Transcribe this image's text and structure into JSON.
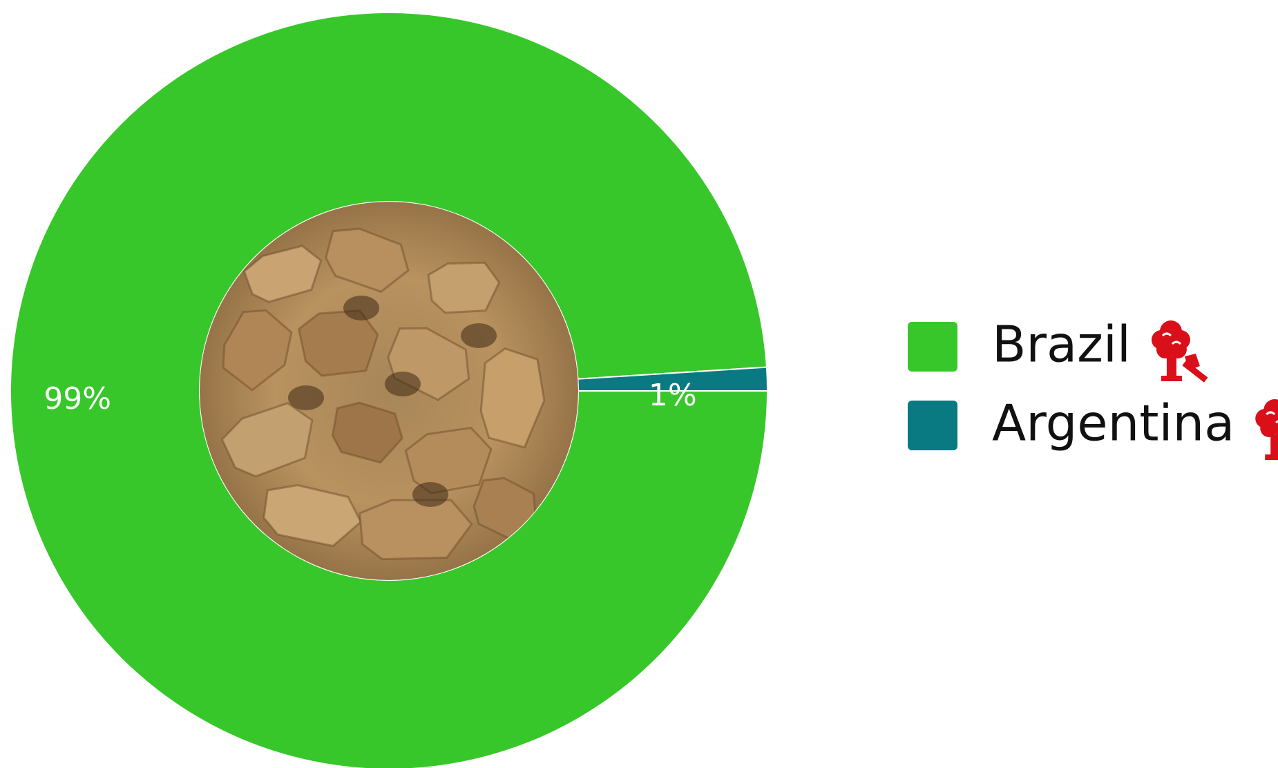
{
  "chart_data": {
    "type": "pie",
    "donut": true,
    "title": "",
    "categories": [
      "Brazil",
      "Argentina"
    ],
    "values": [
      99,
      1
    ],
    "labels": [
      "99%",
      "1%"
    ],
    "colors": [
      "#38c72a",
      "#0a7a82"
    ],
    "legend": {
      "placement": "right",
      "icon": "deforestation-tree-axe-icon",
      "icon_color": "#d9101a"
    },
    "center_image": "soybean-meal-photo"
  }
}
